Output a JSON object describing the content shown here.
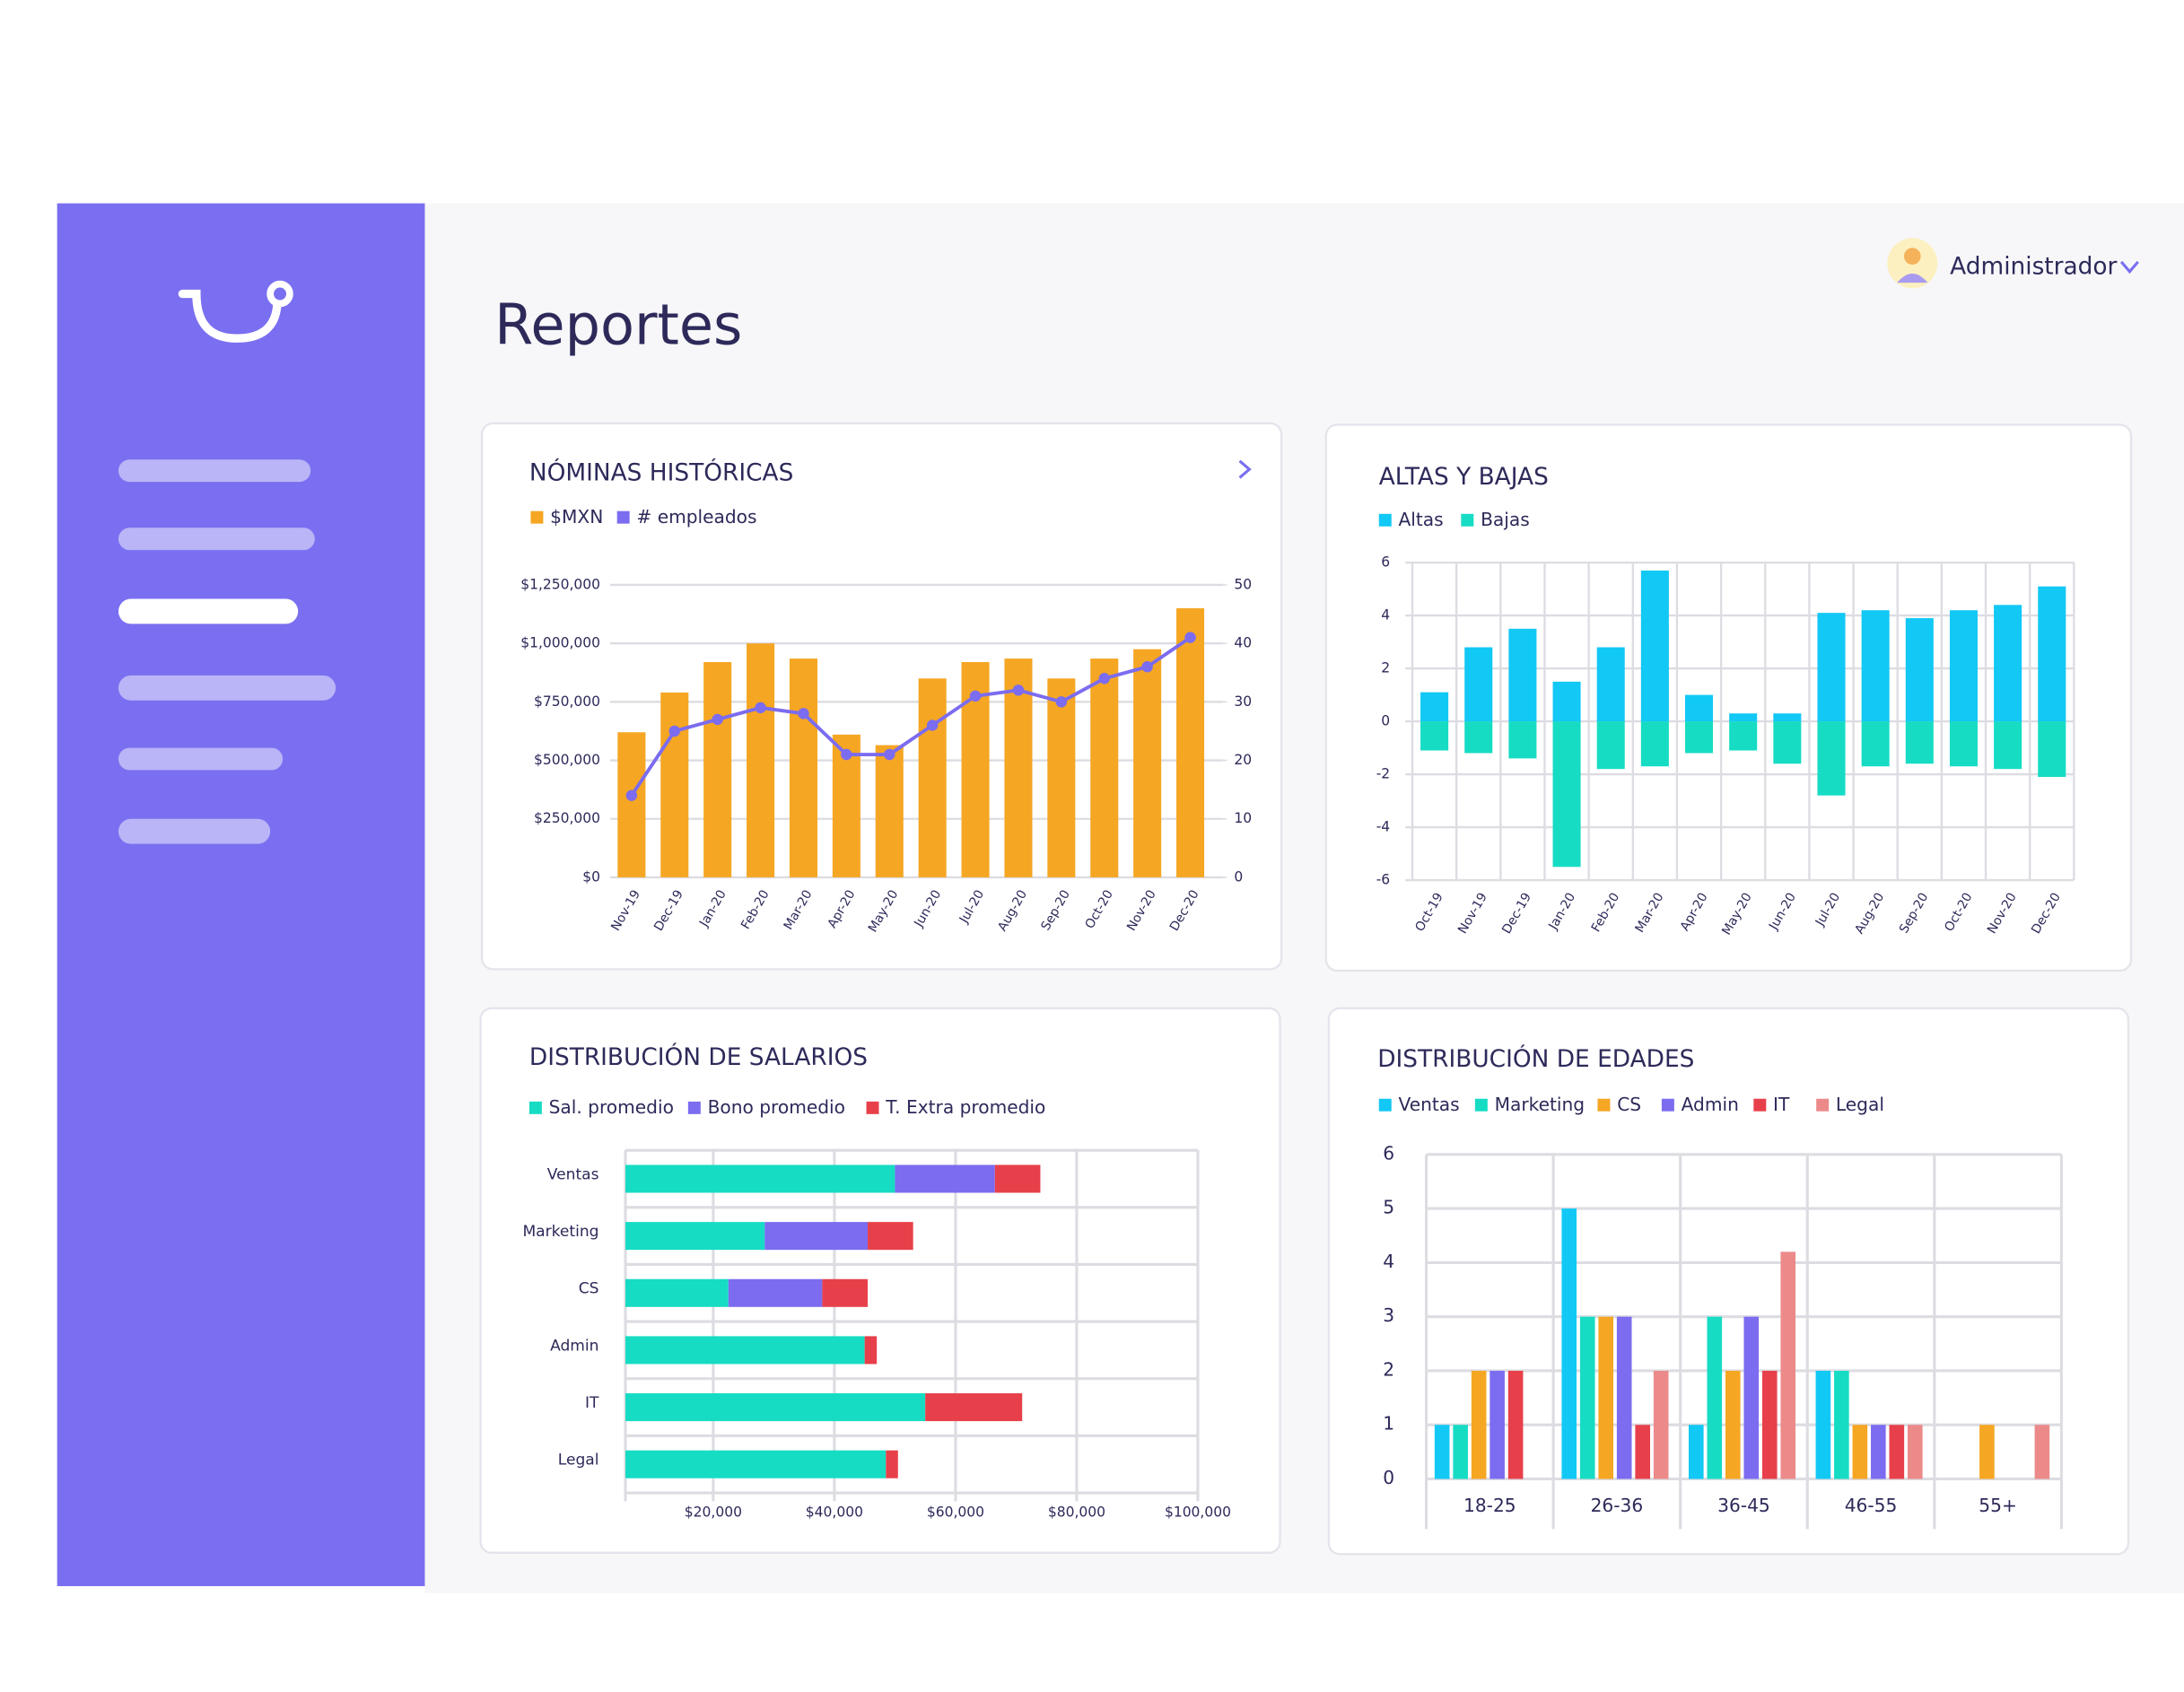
{
  "header": {
    "title": "Reportes",
    "user": "Administrador"
  },
  "chart_data": [
    {
      "type": "bar_line",
      "title": "NÓMINAS HISTÓRICAS",
      "categories": [
        "Nov-19",
        "Dec-19",
        "Jan-20",
        "Feb-20",
        "Mar-20",
        "Apr-20",
        "May-20",
        "Jun-20",
        "Jul-20",
        "Aug-20",
        "Sep-20",
        "Oct-20",
        "Nov-20",
        "Dec-20"
      ],
      "series": [
        {
          "name": "$MXN",
          "color": "#f5a623",
          "values": [
            620000,
            790000,
            920000,
            1000000,
            935000,
            610000,
            565000,
            850000,
            920000,
            935000,
            850000,
            935000,
            975000,
            1150000
          ]
        },
        {
          "name": "# empleados",
          "color": "#7b6cf0",
          "axis": "y2",
          "values": [
            14,
            25,
            27,
            29,
            28,
            21,
            21,
            26,
            31,
            32,
            30,
            34,
            36,
            41
          ]
        }
      ],
      "ylim": [
        0,
        1250000
      ],
      "yticks": [
        {
          "value": 0,
          "label": "$0"
        },
        {
          "value": 250000,
          "label": "$250,000"
        },
        {
          "value": 500000,
          "label": "$500,000"
        },
        {
          "value": 750000,
          "label": "$750,000"
        },
        {
          "value": 1000000,
          "label": "$1,000,000"
        },
        {
          "value": 1250000,
          "label": "$1,250,000"
        }
      ],
      "y2lim": [
        0,
        50
      ],
      "y2ticks": [
        0,
        10,
        20,
        30,
        40,
        50
      ],
      "grid": true
    },
    {
      "type": "stacked_bar",
      "title": "ALTAS Y BAJAS",
      "categories": [
        "Oct-19",
        "Nov-19",
        "Dec-19",
        "Jan-20",
        "Feb-20",
        "Mar-20",
        "Apr-20",
        "May-20",
        "Jun-20",
        "Jul-20",
        "Aug-20",
        "Sep-20",
        "Oct-20",
        "Nov-20",
        "Dec-20"
      ],
      "series": [
        {
          "name": "Altas",
          "color": "#12c8f5",
          "values": [
            1.1,
            2.8,
            3.5,
            1.5,
            2.8,
            5.7,
            1,
            0.3,
            0.3,
            4.1,
            4.2,
            3.9,
            4.2,
            4.4,
            5.1
          ]
        },
        {
          "name": "Bajas",
          "color": "#16dcc4",
          "values": [
            -1.1,
            -1.2,
            -1.4,
            -5.5,
            -1.8,
            -1.7,
            -1.2,
            -1.1,
            -1.6,
            -2.8,
            -1.7,
            -1.6,
            -1.7,
            -1.8,
            -2.1
          ]
        }
      ],
      "ylim": [
        -6,
        6
      ],
      "yticks": [
        -6,
        -4,
        -2,
        0,
        2,
        4,
        6
      ],
      "grid": true
    },
    {
      "type": "stacked_barh",
      "title": "DISTRIBUCIÓN DE SALARIOS",
      "categories": [
        "Ventas",
        "Marketing",
        "CS",
        "Admin",
        "IT",
        "Legal"
      ],
      "series": [
        {
          "name": "Sal. promedio",
          "color": "#16dcc4",
          "values": [
            50000,
            28500,
            22500,
            45000,
            55000,
            48500
          ]
        },
        {
          "name": "Bono promedio",
          "color": "#7b6cf0",
          "values": [
            16500,
            17000,
            15500,
            0,
            0,
            0
          ]
        },
        {
          "name": "T. Extra promedio",
          "color": "#e8404a",
          "values": [
            7500,
            7500,
            7500,
            2000,
            16000,
            2000
          ]
        }
      ],
      "xlim": [
        5500,
        100000
      ],
      "xticks": [
        {
          "value": 20000,
          "label": "$20,000"
        },
        {
          "value": 40000,
          "label": "$40,000"
        },
        {
          "value": 60000,
          "label": "$60,000"
        },
        {
          "value": 80000,
          "label": "$80,000"
        },
        {
          "value": 100000,
          "label": "$100,000"
        }
      ],
      "grid": true
    },
    {
      "type": "grouped_bar",
      "title": "DISTRIBUCIÓN DE EDADES",
      "categories": [
        "18-25",
        "26-36",
        "36-45",
        "46-55",
        "55+"
      ],
      "series": [
        {
          "name": "Ventas",
          "color": "#12c8f5",
          "values": [
            1,
            5,
            1,
            2,
            0
          ]
        },
        {
          "name": "Marketing",
          "color": "#16dcc4",
          "values": [
            1,
            3,
            3,
            2,
            0
          ]
        },
        {
          "name": "CS",
          "color": "#f5a623",
          "values": [
            2,
            3,
            2,
            1,
            1
          ]
        },
        {
          "name": "Admin",
          "color": "#7b6cf0",
          "values": [
            2,
            3,
            3,
            1,
            0
          ]
        },
        {
          "name": "IT",
          "color": "#e8404a",
          "values": [
            2,
            1,
            2,
            1,
            0
          ]
        },
        {
          "name": "Legal",
          "color": "#ec8a8a",
          "values": [
            0,
            2,
            4.2,
            1,
            1
          ]
        }
      ],
      "ylim": [
        0,
        6
      ],
      "yticks": [
        0,
        1,
        2,
        3,
        4,
        5,
        6
      ],
      "grid": true
    }
  ]
}
